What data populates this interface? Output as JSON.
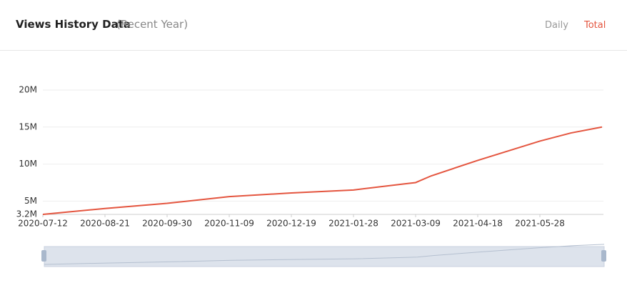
{
  "header": {
    "title": "Views History Data",
    "subtitle": "(Recent Year)",
    "tabs": [
      "Daily",
      "Total"
    ]
  },
  "chart_data": {
    "type": "line",
    "x": [
      "2020-07-12",
      "2020-08-21",
      "2020-09-30",
      "2020-11-09",
      "2020-12-19",
      "2021-01-28",
      "2021-03-01",
      "2021-03-09",
      "2021-03-19",
      "2021-04-18",
      "2021-05-08",
      "2021-05-28",
      "2021-06-17",
      "2021-07-07"
    ],
    "series": [
      {
        "name": "Total",
        "color": "#e4553f",
        "values": [
          3200000,
          4000000,
          4700000,
          5600000,
          6100000,
          6500000,
          7300000,
          7500000,
          8400000,
          10500000,
          11800000,
          13100000,
          14200000,
          15000000
        ]
      }
    ],
    "xlim": [
      "2020-07-12",
      "2021-07-07"
    ],
    "xticks": [
      "2020-07-12",
      "2020-08-21",
      "2020-09-30",
      "2020-11-09",
      "2020-12-19",
      "2021-01-28",
      "2021-03-09",
      "2021-04-18",
      "2021-05-28"
    ],
    "ylim": [
      3200000,
      20000000
    ],
    "yticks": [
      {
        "value": 3200000,
        "label": "3.2M"
      },
      {
        "value": 5000000,
        "label": "5M"
      },
      {
        "value": 10000000,
        "label": "10M"
      },
      {
        "value": 15000000,
        "label": "15M"
      },
      {
        "value": 20000000,
        "label": "20M"
      }
    ],
    "grid": true
  }
}
